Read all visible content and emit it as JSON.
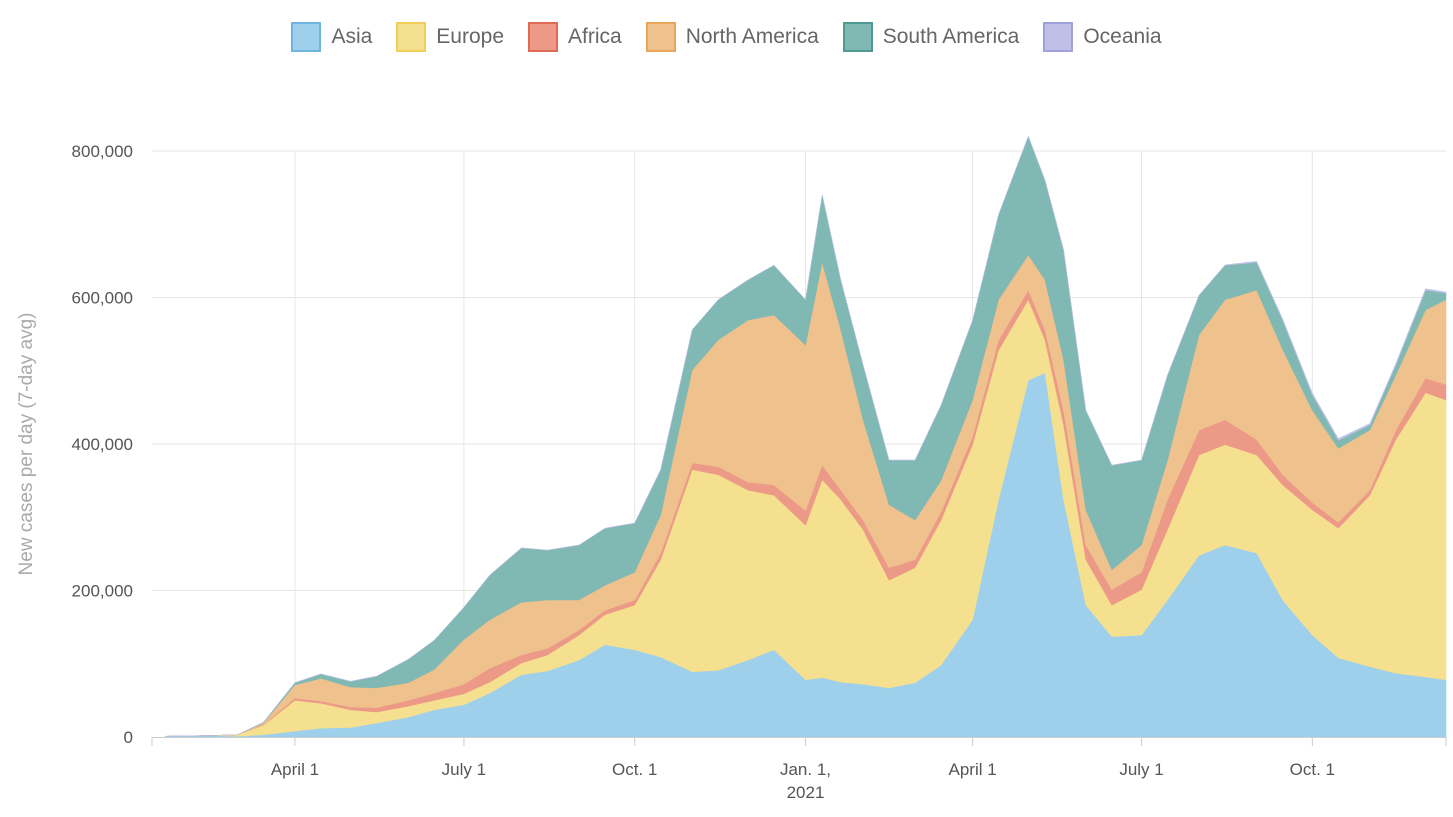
{
  "chart_data": {
    "type": "area",
    "stacked": true,
    "ylabel": "New cases per day (7-day avg)",
    "xlabel": "",
    "ylim": [
      0,
      800000
    ],
    "xlim": [
      "2020-01-15",
      "2021-12-12"
    ],
    "grid": true,
    "legend_position": "top",
    "y_ticks": [
      {
        "value": 0,
        "label": "0"
      },
      {
        "value": 200000,
        "label": "200,000"
      },
      {
        "value": 400000,
        "label": "400,000"
      },
      {
        "value": 600000,
        "label": "600,000"
      },
      {
        "value": 800000,
        "label": "800,000"
      }
    ],
    "x_ticks": [
      {
        "date": "2020-04-01",
        "label": "April 1",
        "sublabel": ""
      },
      {
        "date": "2020-07-01",
        "label": "July 1",
        "sublabel": ""
      },
      {
        "date": "2020-10-01",
        "label": "Oct. 1",
        "sublabel": ""
      },
      {
        "date": "2021-01-01",
        "label": "Jan. 1,",
        "sublabel": "2021"
      },
      {
        "date": "2021-04-01",
        "label": "April 1",
        "sublabel": ""
      },
      {
        "date": "2021-07-01",
        "label": "July 1",
        "sublabel": ""
      },
      {
        "date": "2021-10-01",
        "label": "Oct. 1",
        "sublabel": ""
      }
    ],
    "x": [
      "2020-01-22",
      "2020-02-15",
      "2020-03-01",
      "2020-03-15",
      "2020-04-01",
      "2020-04-15",
      "2020-05-01",
      "2020-05-15",
      "2020-06-01",
      "2020-06-15",
      "2020-07-01",
      "2020-07-15",
      "2020-08-01",
      "2020-08-15",
      "2020-09-01",
      "2020-09-15",
      "2020-10-01",
      "2020-10-15",
      "2020-11-01",
      "2020-11-15",
      "2020-12-01",
      "2020-12-15",
      "2021-01-01",
      "2021-01-10",
      "2021-01-20",
      "2021-02-01",
      "2021-02-15",
      "2021-03-01",
      "2021-03-15",
      "2021-04-01",
      "2021-04-15",
      "2021-05-01",
      "2021-05-10",
      "2021-05-20",
      "2021-06-01",
      "2021-06-15",
      "2021-07-01",
      "2021-07-15",
      "2021-08-01",
      "2021-08-15",
      "2021-09-01",
      "2021-09-15",
      "2021-10-01",
      "2021-10-15",
      "2021-11-01",
      "2021-11-15",
      "2021-12-01",
      "2021-12-12"
    ],
    "series": [
      {
        "name": "Asia",
        "color": "#9ecfeb",
        "border": "#6fb5e0",
        "values": [
          1000,
          2000,
          1000,
          3000,
          8000,
          12000,
          13000,
          19000,
          27000,
          37000,
          44000,
          60000,
          85000,
          90000,
          105000,
          126000,
          119000,
          109000,
          89000,
          91000,
          105000,
          119000,
          78000,
          81000,
          75000,
          72000,
          67000,
          74000,
          98000,
          160000,
          324000,
          487000,
          497000,
          324000,
          180000,
          137000,
          139000,
          187000,
          248000,
          262000,
          251000,
          187000,
          139000,
          108000,
          96000,
          87000,
          82000,
          78000
        ]
      },
      {
        "name": "Europe",
        "color": "#f5e08f",
        "border": "#f0cf5a",
        "values": [
          0,
          0,
          2000,
          13000,
          42000,
          34000,
          24000,
          15000,
          15000,
          13000,
          15000,
          15000,
          16000,
          22000,
          34000,
          41000,
          61000,
          133000,
          276000,
          267000,
          232000,
          211000,
          211000,
          270000,
          249000,
          211000,
          147000,
          157000,
          198000,
          239000,
          204000,
          110000,
          45000,
          102000,
          62000,
          43000,
          62000,
          96000,
          137000,
          137000,
          134000,
          157000,
          171000,
          177000,
          234000,
          319000,
          388000,
          382000
        ]
      },
      {
        "name": "Africa",
        "color": "#ec9a87",
        "border": "#e06a55",
        "values": [
          0,
          0,
          0,
          1000,
          3000,
          3000,
          4000,
          6000,
          8000,
          10000,
          13000,
          19000,
          11000,
          9000,
          7000,
          6000,
          7000,
          9000,
          9000,
          11000,
          11000,
          14000,
          20000,
          20000,
          13000,
          13000,
          17000,
          11000,
          11000,
          11000,
          14000,
          13000,
          14000,
          20000,
          20000,
          21000,
          24000,
          41000,
          34000,
          34000,
          21000,
          14000,
          10000,
          8000,
          7000,
          13000,
          20000,
          21000
        ]
      },
      {
        "name": "North America",
        "color": "#efc18c",
        "border": "#e8a65a",
        "values": [
          0,
          0,
          0,
          2000,
          18000,
          31000,
          27000,
          27000,
          24000,
          32000,
          61000,
          66000,
          72000,
          66000,
          41000,
          34000,
          38000,
          52000,
          127000,
          173000,
          221000,
          232000,
          226000,
          277000,
          219000,
          137000,
          86000,
          54000,
          43000,
          50000,
          55000,
          48000,
          68000,
          69000,
          48000,
          27000,
          37000,
          54000,
          130000,
          164000,
          204000,
          171000,
          126000,
          101000,
          82000,
          75000,
          93000,
          116000
        ]
      },
      {
        "name": "South America",
        "color": "#80b9b3",
        "border": "#4e9a92",
        "values": [
          0,
          0,
          0,
          1000,
          3000,
          6000,
          8000,
          16000,
          32000,
          40000,
          44000,
          61000,
          74000,
          68000,
          75000,
          78000,
          67000,
          62000,
          55000,
          55000,
          55000,
          68000,
          62000,
          92000,
          68000,
          75000,
          61000,
          82000,
          103000,
          109000,
          116000,
          162000,
          136000,
          150000,
          136000,
          143000,
          116000,
          116000,
          54000,
          47000,
          38000,
          40000,
          21000,
          11000,
          7000,
          14000,
          27000,
          9000
        ]
      },
      {
        "name": "Oceania",
        "color": "#c0c0e6",
        "border": "#a0a0dc",
        "values": [
          0,
          0,
          0,
          0,
          300,
          100,
          0,
          0,
          0,
          0,
          100,
          400,
          300,
          100,
          0,
          0,
          0,
          0,
          0,
          0,
          0,
          0,
          0,
          0,
          0,
          0,
          0,
          0,
          0,
          0,
          0,
          0,
          0,
          0,
          0,
          0,
          0,
          100,
          300,
          500,
          1500,
          2000,
          2500,
          2500,
          2000,
          2000,
          2000,
          1500
        ]
      }
    ]
  }
}
